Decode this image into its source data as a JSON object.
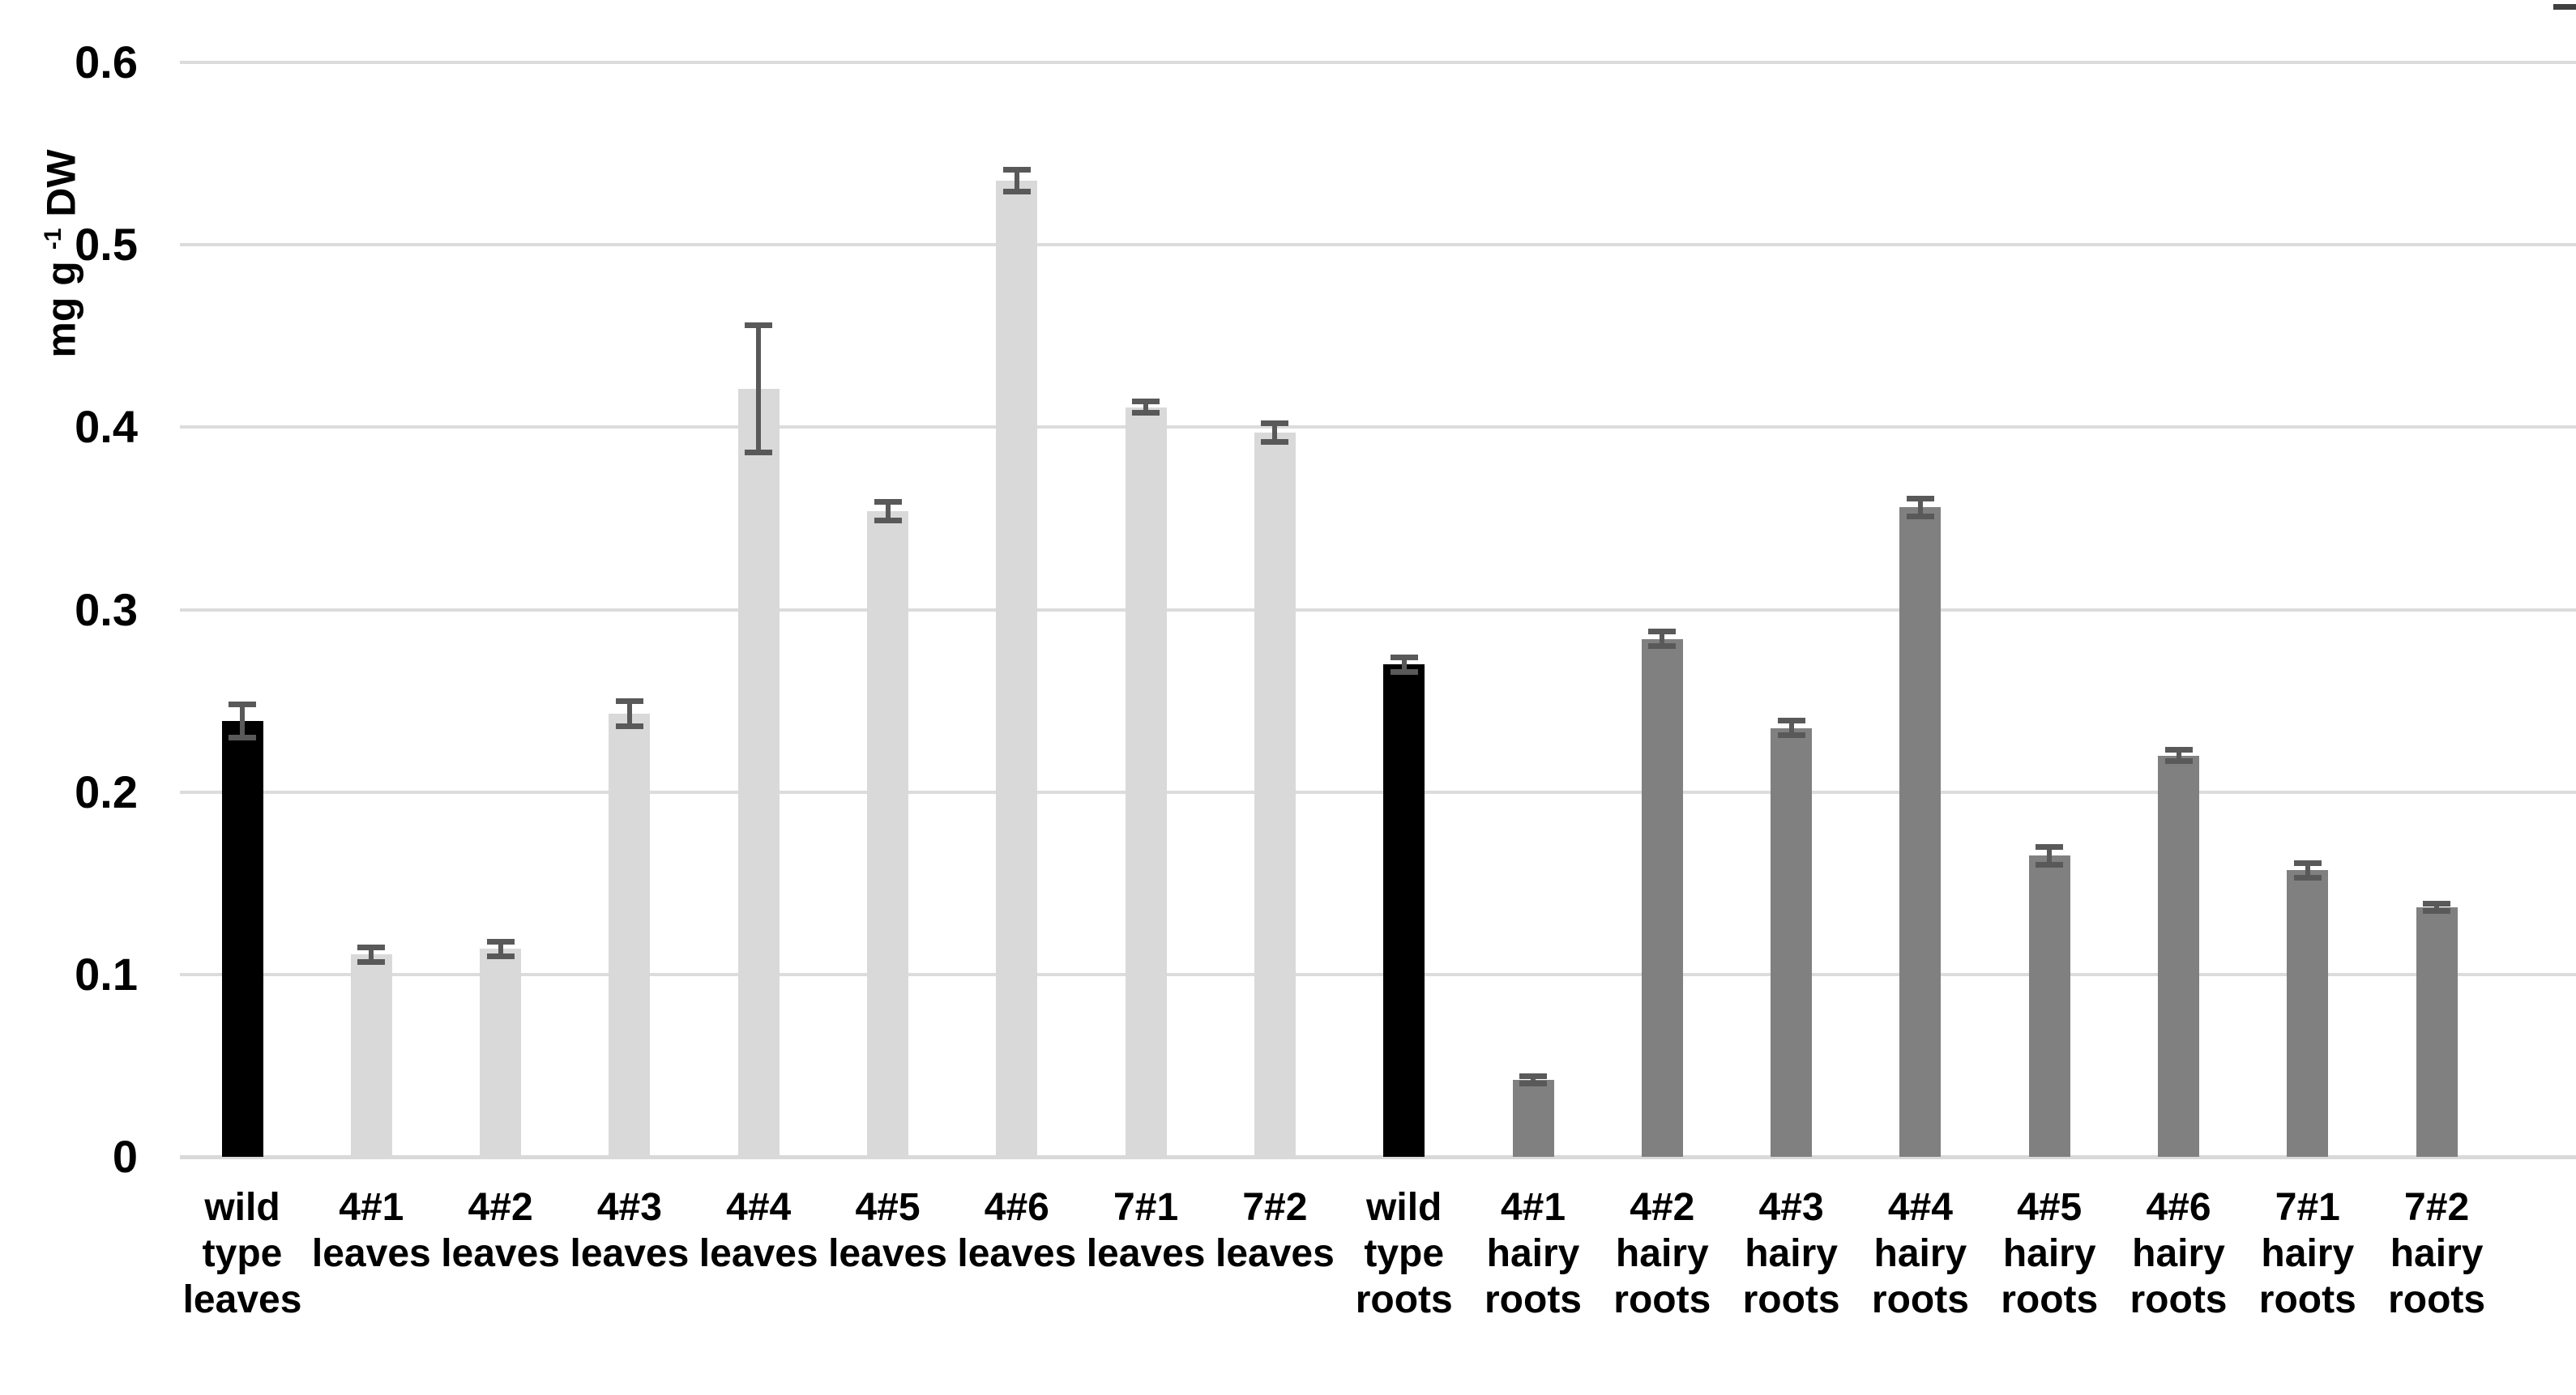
{
  "chart_data": {
    "type": "bar",
    "title": "",
    "xlabel": "",
    "ylabel": {
      "prefix": "mg g ",
      "sup": "-1",
      "suffix": " DW"
    },
    "ylim": [
      0,
      0.6
    ],
    "grid": true,
    "legend": "none",
    "yticks": [
      {
        "value": 0,
        "label": "0"
      },
      {
        "value": 0.1,
        "label": "0.1"
      },
      {
        "value": 0.2,
        "label": "0.2"
      },
      {
        "value": 0.3,
        "label": "0.3"
      },
      {
        "value": 0.4,
        "label": "0.4"
      },
      {
        "value": 0.5,
        "label": "0.5"
      },
      {
        "value": 0.6,
        "label": "0.6"
      }
    ],
    "categories": [
      "wild type leaves",
      "4#1 leaves",
      "4#2 leaves",
      "4#3 leaves",
      "4#4 leaves",
      "4#5 leaves",
      "4#6 leaves",
      "7#1 leaves",
      "7#2 leaves",
      "wild type roots",
      "4#1 hairy roots",
      "4#2 hairy roots",
      "4#3 hairy roots",
      "4#4 hairy roots",
      "4#5 hairy roots",
      "4#6 hairy roots",
      "7#1 hairy roots",
      "7#2 hairy roots"
    ],
    "bars": [
      {
        "label_lines": [
          "wild",
          "type",
          "leaves"
        ],
        "value": 0.239,
        "error": 0.009,
        "group": "wild_type"
      },
      {
        "label_lines": [
          "4#1",
          "leaves"
        ],
        "value": 0.111,
        "error": 0.004,
        "group": "leaves"
      },
      {
        "label_lines": [
          "4#2",
          "leaves"
        ],
        "value": 0.114,
        "error": 0.004,
        "group": "leaves"
      },
      {
        "label_lines": [
          "4#3",
          "leaves"
        ],
        "value": 0.243,
        "error": 0.007,
        "group": "leaves"
      },
      {
        "label_lines": [
          "4#4",
          "leaves"
        ],
        "value": 0.421,
        "error": 0.035,
        "group": "leaves"
      },
      {
        "label_lines": [
          "4#5",
          "leaves"
        ],
        "value": 0.354,
        "error": 0.005,
        "group": "leaves"
      },
      {
        "label_lines": [
          "4#6",
          "leaves"
        ],
        "value": 0.535,
        "error": 0.006,
        "group": "leaves"
      },
      {
        "label_lines": [
          "7#1",
          "leaves"
        ],
        "value": 0.411,
        "error": 0.003,
        "group": "leaves"
      },
      {
        "label_lines": [
          "7#2",
          "leaves"
        ],
        "value": 0.397,
        "error": 0.005,
        "group": "leaves"
      },
      {
        "label_lines": [
          "wild",
          "type",
          "roots"
        ],
        "value": 0.27,
        "error": 0.004,
        "group": "wild_type"
      },
      {
        "label_lines": [
          "4#1",
          "hairy",
          "roots"
        ],
        "value": 0.042,
        "error": 0.002,
        "group": "hairy_roots"
      },
      {
        "label_lines": [
          "4#2",
          "hairy",
          "roots"
        ],
        "value": 0.284,
        "error": 0.004,
        "group": "hairy_roots"
      },
      {
        "label_lines": [
          "4#3",
          "hairy",
          "roots"
        ],
        "value": 0.235,
        "error": 0.004,
        "group": "hairy_roots"
      },
      {
        "label_lines": [
          "4#4",
          "hairy",
          "roots"
        ],
        "value": 0.356,
        "error": 0.005,
        "group": "hairy_roots"
      },
      {
        "label_lines": [
          "4#5",
          "hairy",
          "roots"
        ],
        "value": 0.165,
        "error": 0.005,
        "group": "hairy_roots"
      },
      {
        "label_lines": [
          "4#6",
          "hairy",
          "roots"
        ],
        "value": 0.22,
        "error": 0.003,
        "group": "hairy_roots"
      },
      {
        "label_lines": [
          "7#1",
          "hairy",
          "roots"
        ],
        "value": 0.157,
        "error": 0.004,
        "group": "hairy_roots"
      },
      {
        "label_lines": [
          "7#2",
          "hairy",
          "roots"
        ],
        "value": 0.137,
        "error": 0.002,
        "group": "hairy_roots"
      }
    ],
    "colors": {
      "wild_type": "#000000",
      "leaves": "#d9d9d9",
      "hairy_roots": "#808080",
      "error_bar": "#595959",
      "gridline": "#dcdcdc",
      "axis_line": "#d9d9d9",
      "text": "#000000",
      "background": "#ffffff",
      "corner_mark": "#404040"
    }
  }
}
